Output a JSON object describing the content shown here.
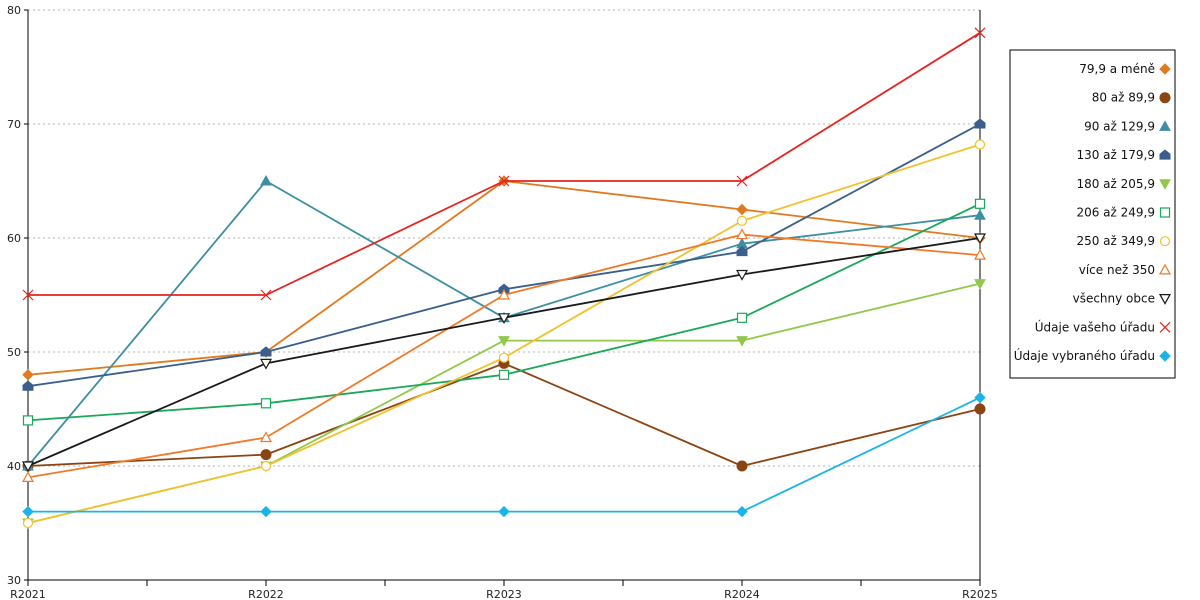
{
  "chart_data": {
    "type": "line",
    "categories": [
      "R2021",
      "R2022",
      "R2023",
      "R2024",
      "R2025"
    ],
    "ylim": [
      30,
      80
    ],
    "yticks": [
      30,
      40,
      50,
      60,
      70,
      80
    ],
    "grid": "horizontal-dotted",
    "legend_position": "right",
    "series": [
      {
        "name": "79,9 a méně",
        "color": "#e07a1f",
        "marker": "diamond",
        "values": [
          48,
          50,
          65,
          62.5,
          60
        ]
      },
      {
        "name": "80 až 89,9",
        "color": "#8b4513",
        "marker": "circle",
        "values": [
          40,
          41,
          49,
          40,
          45
        ]
      },
      {
        "name": "90 až 129,9",
        "color": "#3d8fa3",
        "marker": "triangle",
        "values": [
          40,
          65,
          53,
          59.5,
          62
        ]
      },
      {
        "name": "130 až 179,9",
        "color": "#3a5f8c",
        "marker": "house",
        "values": [
          47,
          50,
          55.5,
          58.8,
          70
        ]
      },
      {
        "name": "180 až 205,9",
        "color": "#92c84a",
        "marker": "triangle-down",
        "values": [
          35,
          40,
          51,
          51,
          56
        ]
      },
      {
        "name": "206 až 249,9",
        "color": "#1aa85a",
        "marker": "square-open",
        "values": [
          44,
          45.5,
          48,
          53,
          63
        ]
      },
      {
        "name": "250 až 349,9",
        "color": "#f2c12e",
        "marker": "circle-open",
        "values": [
          35,
          40,
          49.5,
          61.5,
          68.2
        ]
      },
      {
        "name": "více než 350",
        "color": "#f07a28",
        "marker": "triangle-open",
        "values": [
          39,
          42.5,
          55,
          60.3,
          58.5
        ]
      },
      {
        "name": "všechny obce",
        "color": "#1a1a1a",
        "marker": "triangle-down-open",
        "values": [
          40,
          49,
          53,
          56.8,
          60
        ]
      },
      {
        "name": "Údaje vašeho úřadu",
        "color": "#e8231f",
        "marker": "x",
        "step": true,
        "values": [
          55,
          55,
          65,
          65,
          78
        ]
      },
      {
        "name": "Údaje vybraného úřadu",
        "color": "#1ab4e8",
        "marker": "diamond",
        "values": [
          36,
          36,
          36,
          36,
          46
        ]
      }
    ]
  }
}
